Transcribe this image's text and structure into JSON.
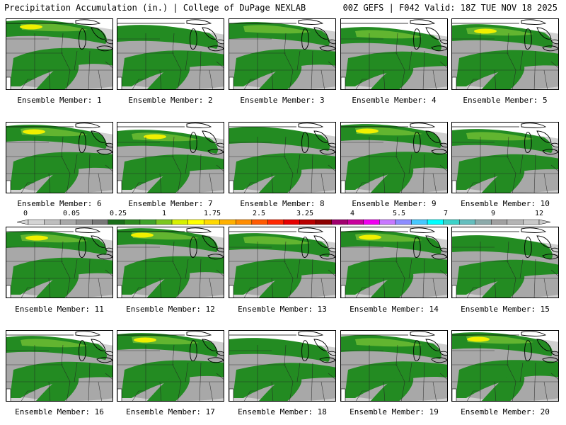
{
  "header": {
    "left_title": "Precipitation Accumulation (in.) | College of DuPage NEXLAB",
    "right_title": "00Z GEFS | F042 Valid: 18Z TUE NOV 18 2025"
  },
  "members": [
    {
      "label": "Ensemble Member: 1",
      "max_cat": "yellow"
    },
    {
      "label": "Ensemble Member: 2",
      "max_cat": "green"
    },
    {
      "label": "Ensemble Member: 3",
      "max_cat": "lightgreen"
    },
    {
      "label": "Ensemble Member: 4",
      "max_cat": "lightgreen"
    },
    {
      "label": "Ensemble Member: 5",
      "max_cat": "yellow"
    },
    {
      "label": "Ensemble Member: 6",
      "max_cat": "yellow"
    },
    {
      "label": "Ensemble Member: 7",
      "max_cat": "yellow"
    },
    {
      "label": "Ensemble Member: 8",
      "max_cat": "green"
    },
    {
      "label": "Ensemble Member: 9",
      "max_cat": "yellow"
    },
    {
      "label": "Ensemble Member: 10",
      "max_cat": "lightgreen"
    },
    {
      "label": "Ensemble Member: 11",
      "max_cat": "yellow"
    },
    {
      "label": "Ensemble Member: 12",
      "max_cat": "yellow"
    },
    {
      "label": "Ensemble Member: 13",
      "max_cat": "lightgreen"
    },
    {
      "label": "Ensemble Member: 14",
      "max_cat": "yellow"
    },
    {
      "label": "Ensemble Member: 15",
      "max_cat": "green"
    },
    {
      "label": "Ensemble Member: 16",
      "max_cat": "lightgreen"
    },
    {
      "label": "Ensemble Member: 17",
      "max_cat": "yellow"
    },
    {
      "label": "Ensemble Member: 18",
      "max_cat": "green"
    },
    {
      "label": "Ensemble Member: 19",
      "max_cat": "lightgreen"
    },
    {
      "label": "Ensemble Member: 20",
      "max_cat": "yellow"
    }
  ],
  "colorbar": {
    "tick_labels": [
      "0",
      "0.05",
      "0.25",
      "1",
      "1.75",
      "2.5",
      "3.25",
      "4",
      "5.5",
      "7",
      "9",
      "12"
    ],
    "colors": [
      "#d4d4d4",
      "#bebebe",
      "#a8a8a8",
      "#909090",
      "#787878",
      "#1a6e1a",
      "#2e8b22",
      "#3fa32a",
      "#7cc61e",
      "#d6f000",
      "#ffff00",
      "#ffd800",
      "#ffb000",
      "#ff8c00",
      "#ff5a00",
      "#ff2800",
      "#e60000",
      "#b80000",
      "#8c0000",
      "#a0006e",
      "#c8009c",
      "#f000f0",
      "#c878ff",
      "#8c8cff",
      "#46c8ff",
      "#00ffff",
      "#3cd2c8",
      "#64bebe",
      "#8caaaa",
      "#a0a0a0",
      "#b4b4b4",
      "#c8c8c8"
    ]
  },
  "colors": {
    "land": "#ffffff",
    "gray_light": "#d0d0d0",
    "gray_mid": "#a8a8a8",
    "green_dark": "#238b22",
    "green_light": "#62b530",
    "yellow": "#f0f000"
  }
}
